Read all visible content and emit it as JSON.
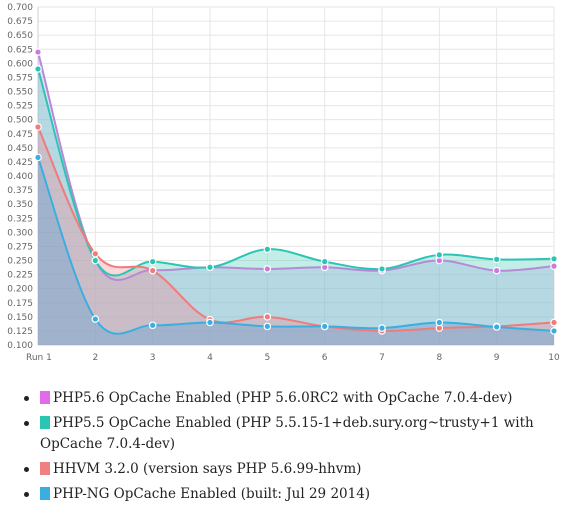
{
  "chart_data": {
    "type": "line",
    "x": [
      "Run 1",
      "2",
      "3",
      "4",
      "5",
      "6",
      "7",
      "8",
      "9",
      "10"
    ],
    "ylim": [
      0.1,
      0.7
    ],
    "y_ticks": [
      "0.100",
      "0.125",
      "0.150",
      "0.175",
      "0.200",
      "0.225",
      "0.250",
      "0.275",
      "0.300",
      "0.325",
      "0.350",
      "0.375",
      "0.400",
      "0.425",
      "0.450",
      "0.475",
      "0.500",
      "0.525",
      "0.550",
      "0.575",
      "0.600",
      "0.625",
      "0.650",
      "0.675",
      "0.700"
    ],
    "grid": true,
    "legend_position": "bottom",
    "series": [
      {
        "name": "PHP5.6 OpCache Enabled (PHP 5.6.0RC2 with OpCache 7.0.4-dev)",
        "swatch": "#e36be8",
        "line": "#b58ad6",
        "fill": "rgba(200,160,235,0.35)",
        "point": "#c97be0",
        "values": [
          0.62,
          0.25,
          0.233,
          0.238,
          0.235,
          0.238,
          0.232,
          0.25,
          0.232,
          0.24
        ]
      },
      {
        "name": "PHP5.5 OpCache Enabled (PHP 5.5.15-1+deb.sury.org~trusty+1 with OpCache 7.0.4-dev)",
        "swatch": "#2cc5b4",
        "line": "#2cc5b4",
        "fill": "rgba(80,205,185,0.35)",
        "point": "#2cc5b4",
        "values": [
          0.59,
          0.25,
          0.248,
          0.238,
          0.27,
          0.248,
          0.235,
          0.26,
          0.252,
          0.253
        ]
      },
      {
        "name": "HHVM 3.2.0 (version says PHP 5.6.99-hhvm)",
        "swatch": "#f08080",
        "line": "#f07b7b",
        "fill": "rgba(240,140,150,0.35)",
        "point": "#f07b7b",
        "values": [
          0.487,
          0.262,
          0.232,
          0.145,
          0.15,
          0.133,
          0.125,
          0.13,
          0.133,
          0.14
        ]
      },
      {
        "name": "PHP-NG OpCache Enabled (built: Jul 29 2014)",
        "swatch": "#3aaee0",
        "line": "#3aaee0",
        "fill": "rgba(110,165,210,0.45)",
        "point": "#3aaee0",
        "values": [
          0.433,
          0.146,
          0.135,
          0.14,
          0.133,
          0.133,
          0.13,
          0.14,
          0.132,
          0.125
        ]
      }
    ]
  },
  "legend": [
    {
      "label": "PHP5.6 OpCache Enabled (PHP 5.6.0RC2 with OpCache 7.0.4-dev)"
    },
    {
      "label": "PHP5.5 OpCache Enabled (PHP 5.5.15-1+deb.sury.org~trusty+1 with OpCache 7.0.4-dev)"
    },
    {
      "label": "HHVM 3.2.0 (version says PHP 5.6.99-hhvm)"
    },
    {
      "label": "PHP-NG OpCache Enabled (built: Jul 29 2014)"
    }
  ]
}
